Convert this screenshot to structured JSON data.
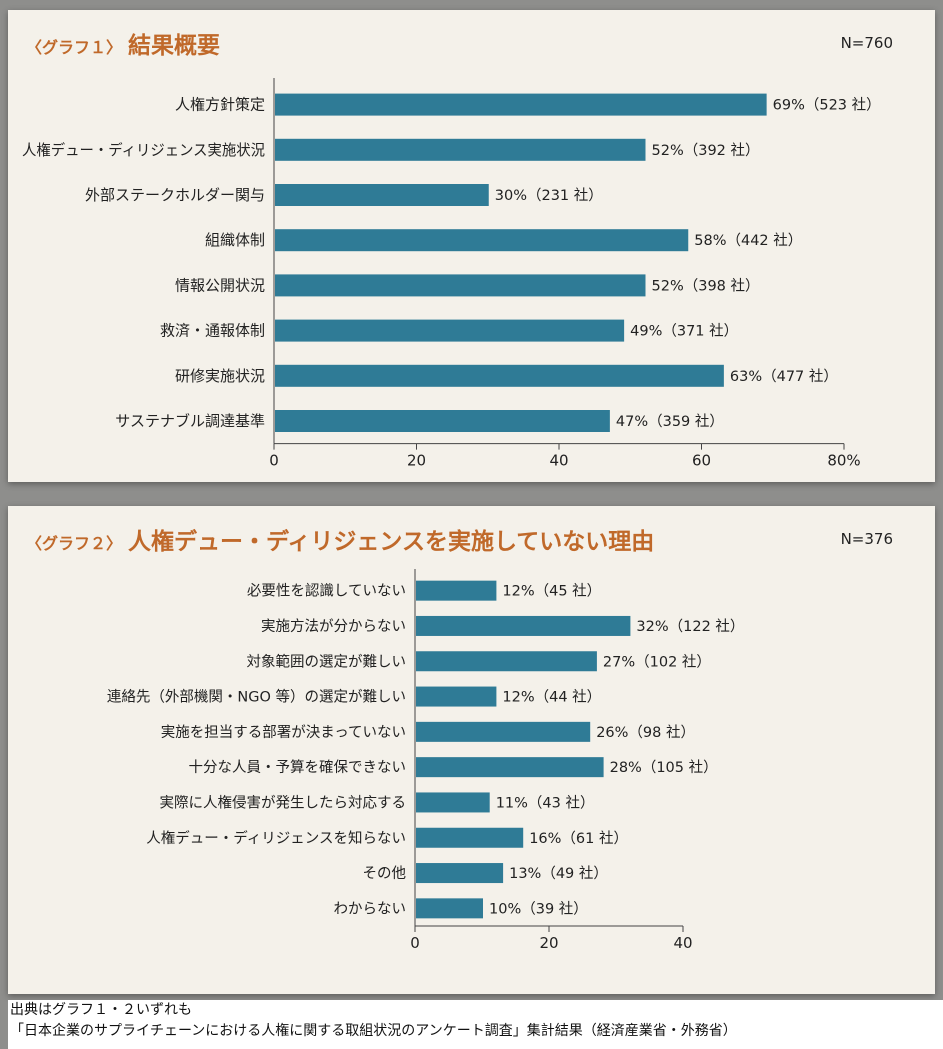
{
  "graph1": {
    "tag": "〈グラフ１〉",
    "title": "結果概要",
    "n": "N=760"
  },
  "graph2": {
    "tag": "〈グラフ２〉",
    "title": "人権デュー・ディリジェンスを実施していない理由",
    "n": "N=376"
  },
  "footer": {
    "line1": "出典はグラフ１・２いずれも",
    "line2": "「日本企業のサプライチェーンにおける人権に関する取組状況のアンケート調査」集計結果（経済産業省・外務省）"
  },
  "colors": {
    "bar": "#2f7b96",
    "title": "#c0692a"
  },
  "chart_data": [
    {
      "type": "bar",
      "orientation": "horizontal",
      "title": "結果概要",
      "categories": [
        "人権方針策定",
        "人権デュー・ディリジェンス実施状況",
        "外部ステークホルダー関与",
        "組織体制",
        "情報公開状況",
        "救済・通報体制",
        "研修実施状況",
        "サステナブル調達基準"
      ],
      "values": [
        69,
        52,
        30,
        58,
        52,
        49,
        63,
        47
      ],
      "value_labels": [
        "69%（523 社）",
        "52%（392 社）",
        "30%（231 社）",
        "58%（442 社）",
        "52%（398 社）",
        "49%（371 社）",
        "63%（477 社）",
        "47%（359 社）"
      ],
      "xlim": [
        0,
        80
      ],
      "xticks": [
        0,
        20,
        40,
        60,
        80
      ],
      "xtick_labels": [
        "0",
        "20",
        "40",
        "60",
        "80%"
      ]
    },
    {
      "type": "bar",
      "orientation": "horizontal",
      "title": "人権デュー・ディリジェンスを実施していない理由",
      "categories": [
        "必要性を認識していない",
        "実施方法が分からない",
        "対象範囲の選定が難しい",
        "連絡先（外部機関・NGO 等）の選定が難しい",
        "実施を担当する部署が決まっていない",
        "十分な人員・予算を確保できない",
        "実際に人権侵害が発生したら対応する",
        "人権デュー・ディリジェンスを知らない",
        "その他",
        "わからない"
      ],
      "values": [
        12,
        32,
        27,
        12,
        26,
        28,
        11,
        16,
        13,
        10
      ],
      "value_labels": [
        "12%（45 社）",
        "32%（122 社）",
        "27%（102 社）",
        "12%（44 社）",
        "26%（98 社）",
        "28%（105 社）",
        "11%（43 社）",
        "16%（61 社）",
        "13%（49 社）",
        "10%（39 社）"
      ],
      "xlim": [
        0,
        40
      ],
      "xticks": [
        0,
        20,
        40
      ],
      "xtick_labels": [
        "0",
        "20",
        "40"
      ]
    }
  ]
}
